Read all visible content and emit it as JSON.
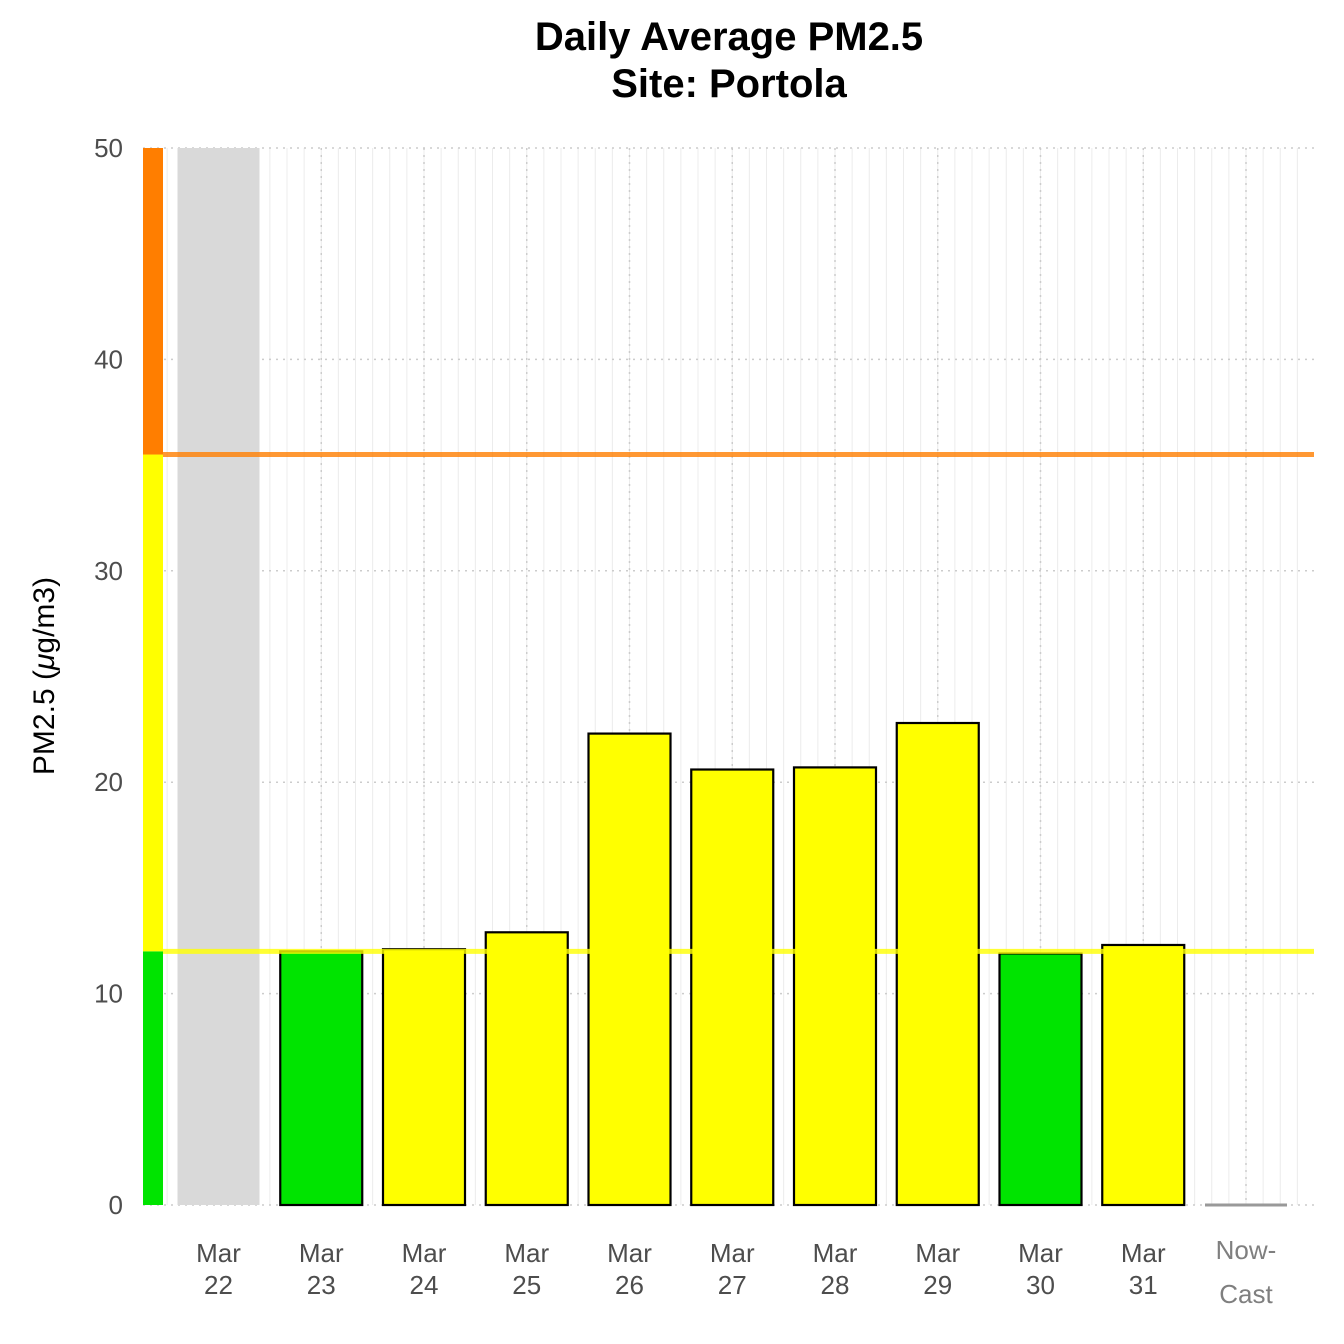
{
  "chart_data": {
    "type": "bar",
    "title": "Daily Average PM2.5",
    "subtitle": "Site: Portola",
    "ylabel_parts": [
      "PM2.5 (",
      "μ",
      "g/m3)"
    ],
    "xlabel": "",
    "ylim": [
      0,
      50
    ],
    "yticks": [
      0,
      10,
      20,
      30,
      40,
      50
    ],
    "grid": true,
    "categories": [
      {
        "line1": "Mar",
        "line2": "22"
      },
      {
        "line1": "Mar",
        "line2": "23"
      },
      {
        "line1": "Mar",
        "line2": "24"
      },
      {
        "line1": "Mar",
        "line2": "25"
      },
      {
        "line1": "Mar",
        "line2": "26"
      },
      {
        "line1": "Mar",
        "line2": "27"
      },
      {
        "line1": "Mar",
        "line2": "28"
      },
      {
        "line1": "Mar",
        "line2": "29"
      },
      {
        "line1": "Mar",
        "line2": "30"
      },
      {
        "line1": "Mar",
        "line2": "31"
      },
      {
        "line1": "Now-",
        "line2": "Cast"
      }
    ],
    "values": [
      null,
      12.0,
      12.1,
      12.9,
      22.3,
      20.6,
      20.7,
      22.8,
      11.9,
      12.3,
      0
    ],
    "bar_categories": [
      "missing",
      "good",
      "moderate",
      "moderate",
      "moderate",
      "moderate",
      "moderate",
      "moderate",
      "good",
      "moderate",
      "nowcast"
    ],
    "aqi_thresholds": [
      {
        "level": "good",
        "from": 0,
        "to": 12.0,
        "color": "#00e400"
      },
      {
        "level": "moderate",
        "from": 12.0,
        "to": 35.5,
        "color": "#ffff00"
      },
      {
        "level": "usg",
        "from": 35.5,
        "to": 50,
        "color": "#ff7e00"
      }
    ],
    "threshold_lines": [
      {
        "value": 12.0,
        "color": "#ffff00"
      },
      {
        "value": 35.5,
        "color": "#ff7e00"
      }
    ],
    "colors": {
      "good": "#00e400",
      "moderate": "#ffff00",
      "usg": "#ff7e00",
      "missing": "#d9d9d9",
      "nowcast": "#999999",
      "bar_outline": "#000000",
      "grid": "#cccccc"
    }
  }
}
